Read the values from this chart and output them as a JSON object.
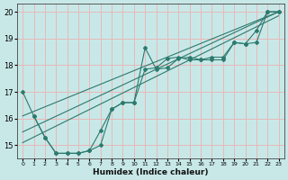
{
  "xlabel": "Humidex (Indice chaleur)",
  "bg_color": "#c8e8e8",
  "grid_color": "#e8b8b8",
  "line_color": "#2d7a6e",
  "xlim": [
    -0.5,
    23.5
  ],
  "ylim": [
    14.5,
    20.3
  ],
  "yticks": [
    15,
    16,
    17,
    18,
    19,
    20
  ],
  "xticks": [
    0,
    1,
    2,
    3,
    4,
    5,
    6,
    7,
    8,
    9,
    10,
    11,
    12,
    13,
    14,
    15,
    16,
    17,
    18,
    19,
    20,
    21,
    22,
    23
  ],
  "line1_x": [
    0,
    1,
    2,
    3,
    4,
    5,
    6,
    7,
    8,
    9,
    10,
    11,
    12,
    13,
    14,
    15,
    16,
    17,
    18,
    19,
    20,
    21,
    22,
    23
  ],
  "line1_y": [
    17.0,
    16.1,
    15.3,
    14.7,
    14.7,
    14.7,
    14.8,
    15.0,
    16.35,
    16.6,
    16.6,
    18.65,
    17.85,
    17.9,
    18.25,
    18.3,
    18.2,
    18.2,
    18.2,
    18.85,
    18.8,
    18.85,
    20.0,
    20.0
  ],
  "line2_x": [
    0,
    23
  ],
  "line2_y": [
    16.1,
    20.0
  ],
  "line3_x": [
    1,
    2,
    3,
    4,
    5,
    6,
    7,
    8,
    9,
    10,
    11,
    12,
    13,
    14,
    15,
    16,
    17,
    18,
    19,
    20,
    21,
    22,
    23
  ],
  "line3_y": [
    16.1,
    15.3,
    14.7,
    14.7,
    14.7,
    14.8,
    15.55,
    16.35,
    16.6,
    16.6,
    17.85,
    17.9,
    18.25,
    18.3,
    18.2,
    18.2,
    18.3,
    18.3,
    18.85,
    18.8,
    19.3,
    20.0,
    20.0
  ],
  "line4_x": [
    0,
    23
  ],
  "line4_y": [
    15.5,
    20.0
  ],
  "line5_x": [
    0,
    23
  ],
  "line5_y": [
    15.1,
    19.85
  ]
}
